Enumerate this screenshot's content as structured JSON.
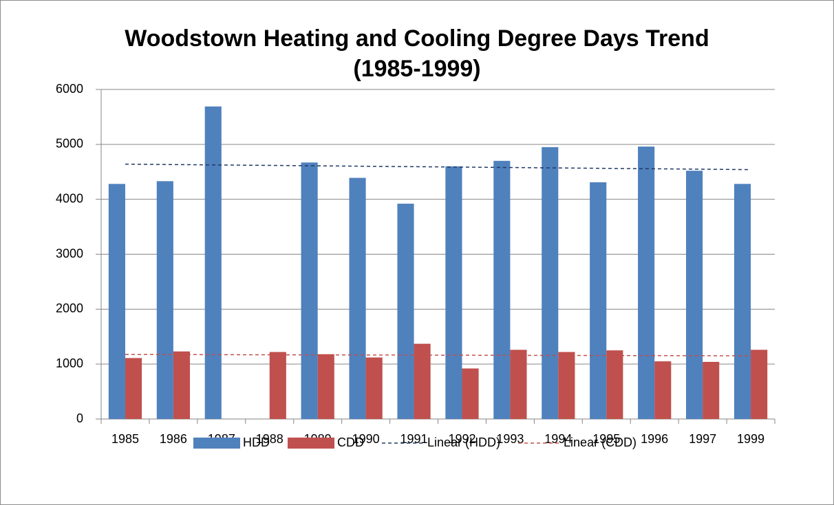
{
  "chart_data": {
    "type": "bar",
    "title": "Woodstown Heating and Cooling Degree Days Trend (1985-1999)",
    "categories": [
      "1985",
      "1986",
      "1987",
      "1988",
      "1989",
      "1990",
      "1991",
      "1992",
      "1993",
      "1994",
      "1995",
      "1996",
      "1997",
      "1999"
    ],
    "series": [
      {
        "name": "HDD",
        "color": "#4f81bd",
        "values": [
          4280,
          4330,
          5690,
          null,
          4670,
          4390,
          3920,
          4600,
          4700,
          4950,
          4310,
          4960,
          4520,
          4280
        ]
      },
      {
        "name": "CDD",
        "color": "#c0504d",
        "values": [
          1110,
          1230,
          null,
          1220,
          1180,
          1120,
          1370,
          920,
          1260,
          1220,
          1250,
          1050,
          1040,
          1260
        ]
      }
    ],
    "trendlines": [
      {
        "name": "Linear (HDD)",
        "color": "#1f3864",
        "x": [
          "1985",
          "1999"
        ],
        "values": [
          4640,
          4540
        ]
      },
      {
        "name": "Linear (CDD)",
        "color": "#c0504d",
        "x": [
          "1985",
          "1999"
        ],
        "values": [
          1175,
          1150
        ]
      }
    ],
    "ylim": [
      0,
      6000
    ],
    "yticks": [
      0,
      1000,
      2000,
      3000,
      4000,
      5000,
      6000
    ],
    "grid": true,
    "legend": "bottom"
  }
}
